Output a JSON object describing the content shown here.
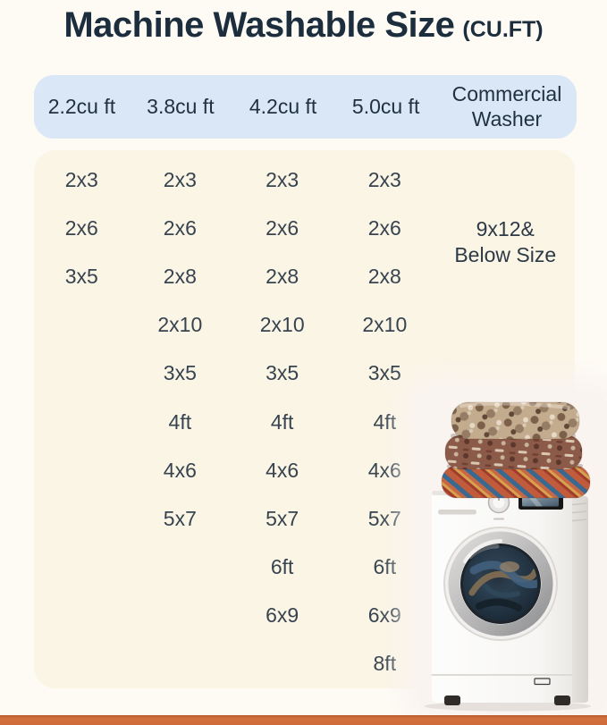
{
  "title": {
    "text": "Machine Washable Size",
    "unit": "(CU.FT)"
  },
  "table": {
    "columns": [
      {
        "label": "2.2cu ft",
        "sizes": [
          "2x3",
          "2x6",
          "3x5"
        ]
      },
      {
        "label": "3.8cu ft",
        "sizes": [
          "2x3",
          "2x6",
          "2x8",
          "2x10",
          "3x5",
          "4ft",
          "4x6",
          "5x7"
        ]
      },
      {
        "label": "4.2cu ft",
        "sizes": [
          "2x3",
          "2x6",
          "2x8",
          "2x10",
          "3x5",
          "4ft",
          "4x6",
          "5x7",
          "6ft",
          "6x9"
        ]
      },
      {
        "label": "5.0cu ft",
        "sizes": [
          "2x3",
          "2x6",
          "2x8",
          "2x10",
          "3x5",
          "4ft",
          "4x6",
          "5x7",
          "6ft",
          "6x9",
          "8ft"
        ]
      },
      {
        "label": "Commercial Washer",
        "sizes": [],
        "note_lines": [
          "9x12&",
          "Below Size"
        ]
      }
    ]
  },
  "colors": {
    "page_cream": "#FEFBF4",
    "panel_cream": "#FBF5E6",
    "header_blue": "#D9E7F6",
    "title_navy": "#1C2E3E",
    "cell_text": "#37444F",
    "accent_orange": "#CE6939"
  },
  "illustration": {
    "rug_stack": "folded-rug-stack",
    "washer": "front-load-washing-machine"
  }
}
